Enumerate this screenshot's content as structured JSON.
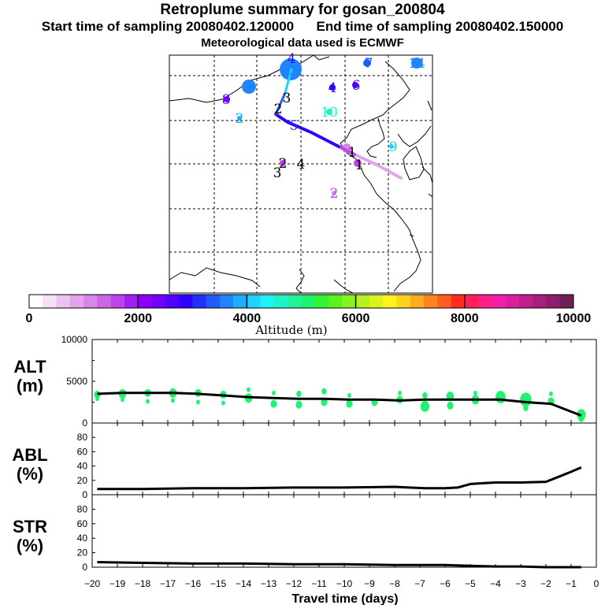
{
  "header": {
    "title": "Retroplume summary for gosan_200804",
    "start_label": "Start time of sampling 20080402.120000",
    "end_label": "End time of sampling 20080402.150000",
    "met_label": "Meteorological data used is ECMWF"
  },
  "colorbar": {
    "ticks": [
      "0",
      "2000",
      "4000",
      "6000",
      "8000",
      "10000"
    ],
    "label": "Altitude (m)",
    "colors": [
      "#ffffff",
      "#f6e0f6",
      "#edc2ef",
      "#e3a4ea",
      "#d886e6",
      "#cb66e6",
      "#bd44e8",
      "#a51ff0",
      "#8b00f5",
      "#7000f8",
      "#5000fb",
      "#2e00ff",
      "#1f30ff",
      "#1f5bff",
      "#1f84ff",
      "#1fadff",
      "#1fd2ff",
      "#1ff2f5",
      "#1ff2c8",
      "#1ff29b",
      "#1ff26e",
      "#33f233",
      "#5bf21f",
      "#86f21f",
      "#b2f21f",
      "#dcf21f",
      "#fff21f",
      "#ffd21f",
      "#ffaa1f",
      "#ff851f",
      "#ff5e1f",
      "#ff2e1f",
      "#ff1f5b",
      "#ff1f86",
      "#f21fa8",
      "#d81f9c",
      "#c01f8b",
      "#a81f7a",
      "#8c1f6a",
      "#6e1f58"
    ]
  },
  "map": {
    "labels": [
      {
        "t": "4",
        "c": "#2e00ff"
      },
      {
        "t": "3",
        "c": "#1f84ff"
      },
      {
        "t": "7",
        "c": "#1f5bff"
      },
      {
        "t": "14",
        "c": "#1f84ff"
      },
      {
        "t": "4",
        "c": "#1f84ff"
      },
      {
        "t": "4",
        "c": "#2e00ff"
      },
      {
        "t": "6",
        "c": "#5000fb"
      },
      {
        "t": "8",
        "c": "#7000f8"
      },
      {
        "t": "3",
        "c": "#000000"
      },
      {
        "t": "2",
        "c": "#000000"
      },
      {
        "t": "10",
        "c": "#1ff2c8"
      },
      {
        "t": "2",
        "c": "#1fadff"
      },
      {
        "t": "5",
        "c": "#1f30ff"
      },
      {
        "t": "9",
        "c": "#1fd2ff"
      },
      {
        "t": "1",
        "c": "#000000"
      },
      {
        "t": "1",
        "c": "#000000"
      },
      {
        "t": "2",
        "c": "#000000"
      },
      {
        "t": "4",
        "c": "#000000"
      },
      {
        "t": "3",
        "c": "#000000"
      },
      {
        "t": "2",
        "c": "#bd44e8"
      }
    ]
  },
  "chart_data": [
    {
      "type": "scatter",
      "name": "ALT",
      "ylabel": "ALT (m)",
      "ylabel_line1": "ALT",
      "ylabel_line2": "(m)",
      "ylim": [
        0,
        10000
      ],
      "yticks": [
        "10000",
        "5000",
        "0"
      ],
      "x": [
        -19.8,
        -18.8,
        -17.8,
        -16.8,
        -15.8,
        -14.8,
        -13.8,
        -12.8,
        -11.8,
        -10.8,
        -9.8,
        -8.8,
        -7.8,
        -6.8,
        -5.8,
        -4.8,
        -3.8,
        -2.8,
        -1.8,
        -0.6
      ],
      "values": [
        3500,
        3600,
        3600,
        3600,
        3500,
        3300,
        3100,
        3000,
        2900,
        2900,
        2800,
        2800,
        2700,
        2800,
        2800,
        2800,
        2800,
        2500,
        2300,
        900
      ],
      "plume_points": [
        {
          "x": -19.8,
          "y": 3400,
          "r": 5
        },
        {
          "x": -19.8,
          "y": 2900,
          "r": 3
        },
        {
          "x": -18.8,
          "y": 3500,
          "r": 6
        },
        {
          "x": -18.8,
          "y": 2800,
          "r": 3
        },
        {
          "x": -17.8,
          "y": 3600,
          "r": 5
        },
        {
          "x": -17.8,
          "y": 2600,
          "r": 3
        },
        {
          "x": -16.8,
          "y": 3600,
          "r": 6
        },
        {
          "x": -16.8,
          "y": 2700,
          "r": 3
        },
        {
          "x": -15.8,
          "y": 3600,
          "r": 5
        },
        {
          "x": -15.8,
          "y": 2500,
          "r": 3
        },
        {
          "x": -14.8,
          "y": 3400,
          "r": 5
        },
        {
          "x": -14.8,
          "y": 2400,
          "r": 3
        },
        {
          "x": -13.8,
          "y": 3000,
          "r": 6
        },
        {
          "x": -13.8,
          "y": 4000,
          "r": 3
        },
        {
          "x": -12.8,
          "y": 2300,
          "r": 5
        },
        {
          "x": -12.8,
          "y": 3600,
          "r": 3
        },
        {
          "x": -11.8,
          "y": 2200,
          "r": 5
        },
        {
          "x": -11.8,
          "y": 3500,
          "r": 4
        },
        {
          "x": -10.8,
          "y": 2500,
          "r": 5
        },
        {
          "x": -10.8,
          "y": 3800,
          "r": 4
        },
        {
          "x": -9.8,
          "y": 2300,
          "r": 5
        },
        {
          "x": -9.8,
          "y": 3300,
          "r": 3
        },
        {
          "x": -8.8,
          "y": 2500,
          "r": 5
        },
        {
          "x": -7.8,
          "y": 2800,
          "r": 5
        },
        {
          "x": -7.8,
          "y": 3600,
          "r": 3
        },
        {
          "x": -6.8,
          "y": 2000,
          "r": 7
        },
        {
          "x": -6.8,
          "y": 3300,
          "r": 4
        },
        {
          "x": -5.8,
          "y": 2100,
          "r": 5
        },
        {
          "x": -5.8,
          "y": 3200,
          "r": 6
        },
        {
          "x": -4.8,
          "y": 2800,
          "r": 6
        },
        {
          "x": -4.8,
          "y": 3600,
          "r": 3
        },
        {
          "x": -3.8,
          "y": 3100,
          "r": 8
        },
        {
          "x": -2.8,
          "y": 2800,
          "r": 9
        },
        {
          "x": -2.8,
          "y": 1800,
          "r": 4
        },
        {
          "x": -1.8,
          "y": 2600,
          "r": 5
        },
        {
          "x": -1.8,
          "y": 3500,
          "r": 3
        },
        {
          "x": -0.6,
          "y": 1000,
          "r": 7
        },
        {
          "x": -0.6,
          "y": 500,
          "r": 4
        }
      ]
    },
    {
      "type": "line",
      "name": "ABL",
      "ylabel": "ABL (%)",
      "ylabel_line1": "ABL",
      "ylabel_line2": "(%)",
      "ylim": [
        0,
        90
      ],
      "yticks": [
        "80",
        "60",
        "40",
        "20",
        "0"
      ],
      "x": [
        -19.8,
        -18,
        -16,
        -14,
        -12,
        -10,
        -8,
        -6.8,
        -6,
        -5.5,
        -5,
        -4.5,
        -4,
        -3,
        -2,
        -1.5,
        -1,
        -0.6
      ],
      "values": [
        8,
        8,
        9,
        9,
        10,
        10,
        11,
        9,
        9,
        10,
        15,
        16,
        17,
        17,
        18,
        25,
        32,
        38
      ]
    },
    {
      "type": "line",
      "name": "STR",
      "ylabel": "STR (%)",
      "ylabel_line1": "STR",
      "ylabel_line2": "(%)",
      "ylim": [
        0,
        90
      ],
      "yticks": [
        "80",
        "60",
        "40",
        "20",
        "0"
      ],
      "x": [
        -19.8,
        -18,
        -16,
        -14,
        -12,
        -10,
        -8,
        -6,
        -5,
        -4,
        -3,
        -2,
        -1,
        -0.6
      ],
      "values": [
        7,
        6,
        5,
        5,
        4,
        4,
        3,
        3,
        2,
        1,
        1,
        0,
        0,
        0
      ]
    }
  ],
  "xaxis": {
    "label": "Travel time (days)",
    "ticks": [
      "−20",
      "−19",
      "−18",
      "−17",
      "−16",
      "−15",
      "−14",
      "−13",
      "−12",
      "−11",
      "−10",
      "−9",
      "−8",
      "−7",
      "−6",
      "−5",
      "−4",
      "−3",
      "−2",
      "−1",
      "0"
    ]
  }
}
